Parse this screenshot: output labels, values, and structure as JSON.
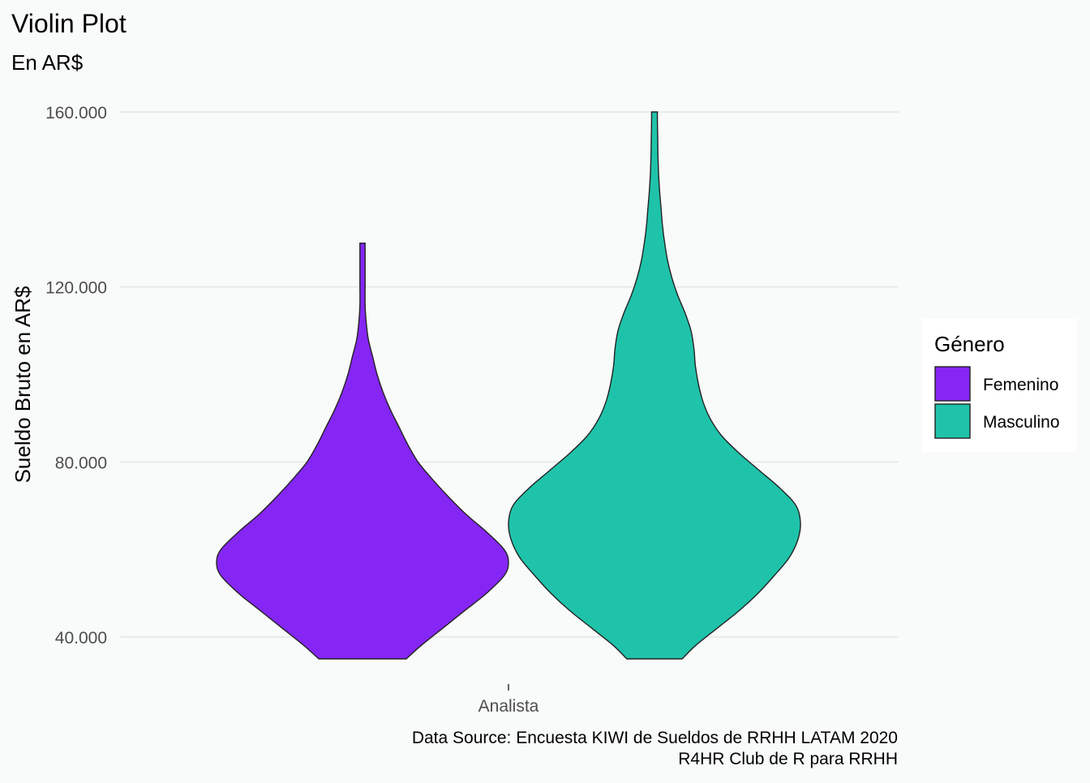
{
  "chart_data": {
    "type": "violin",
    "title": "Violin Plot",
    "subtitle": "En AR$",
    "xlabel": "",
    "ylabel": "Sueldo Bruto en AR$",
    "categories": [
      "Analista"
    ],
    "ylim": [
      35000,
      160000
    ],
    "y_ticks": [
      40000,
      80000,
      120000,
      160000
    ],
    "y_tick_labels": [
      "40.000",
      "80.000",
      "120.000",
      "160.000"
    ],
    "grid": true,
    "caption": [
      "Data Source: Encuesta KIWI de Sueldos de RRHH LATAM 2020",
      "R4HR Club de R para RRHH"
    ],
    "legend": {
      "title": "Género",
      "placement": "right"
    },
    "series": [
      {
        "name": "Femenino",
        "color": "#8526f4",
        "category": "Analista",
        "y_min": 35000,
        "y_max": 130000,
        "density": [
          [
            35000,
            0.3
          ],
          [
            38000,
            0.4
          ],
          [
            42000,
            0.55
          ],
          [
            46000,
            0.7
          ],
          [
            50000,
            0.85
          ],
          [
            54000,
            0.97
          ],
          [
            57000,
            1.0
          ],
          [
            60000,
            0.97
          ],
          [
            64000,
            0.85
          ],
          [
            68000,
            0.71
          ],
          [
            72000,
            0.59
          ],
          [
            76000,
            0.48
          ],
          [
            80000,
            0.38
          ],
          [
            84000,
            0.31
          ],
          [
            88000,
            0.25
          ],
          [
            92000,
            0.19
          ],
          [
            96000,
            0.14
          ],
          [
            100000,
            0.1
          ],
          [
            104000,
            0.07
          ],
          [
            108000,
            0.04
          ],
          [
            112000,
            0.025
          ],
          [
            116000,
            0.018
          ],
          [
            120000,
            0.018
          ],
          [
            124000,
            0.018
          ],
          [
            128000,
            0.018
          ],
          [
            130000,
            0.018
          ]
        ]
      },
      {
        "name": "Masculino",
        "color": "#1fc3aa",
        "category": "Analista",
        "y_min": 35000,
        "y_max": 160000,
        "density": [
          [
            35000,
            0.19
          ],
          [
            38000,
            0.28
          ],
          [
            42000,
            0.43
          ],
          [
            46000,
            0.58
          ],
          [
            50000,
            0.71
          ],
          [
            54000,
            0.82
          ],
          [
            58000,
            0.92
          ],
          [
            62000,
            0.98
          ],
          [
            66000,
            1.0
          ],
          [
            70000,
            0.97
          ],
          [
            74000,
            0.86
          ],
          [
            78000,
            0.72
          ],
          [
            82000,
            0.58
          ],
          [
            86000,
            0.46
          ],
          [
            90000,
            0.38
          ],
          [
            94000,
            0.33
          ],
          [
            98000,
            0.3
          ],
          [
            102000,
            0.28
          ],
          [
            106000,
            0.27
          ],
          [
            110000,
            0.25
          ],
          [
            114000,
            0.21
          ],
          [
            118000,
            0.16
          ],
          [
            122000,
            0.12
          ],
          [
            126000,
            0.09
          ],
          [
            130000,
            0.07
          ],
          [
            134000,
            0.055
          ],
          [
            138000,
            0.045
          ],
          [
            142000,
            0.035
          ],
          [
            146000,
            0.028
          ],
          [
            150000,
            0.024
          ],
          [
            154000,
            0.022
          ],
          [
            158000,
            0.02
          ],
          [
            160000,
            0.02
          ]
        ]
      }
    ]
  }
}
